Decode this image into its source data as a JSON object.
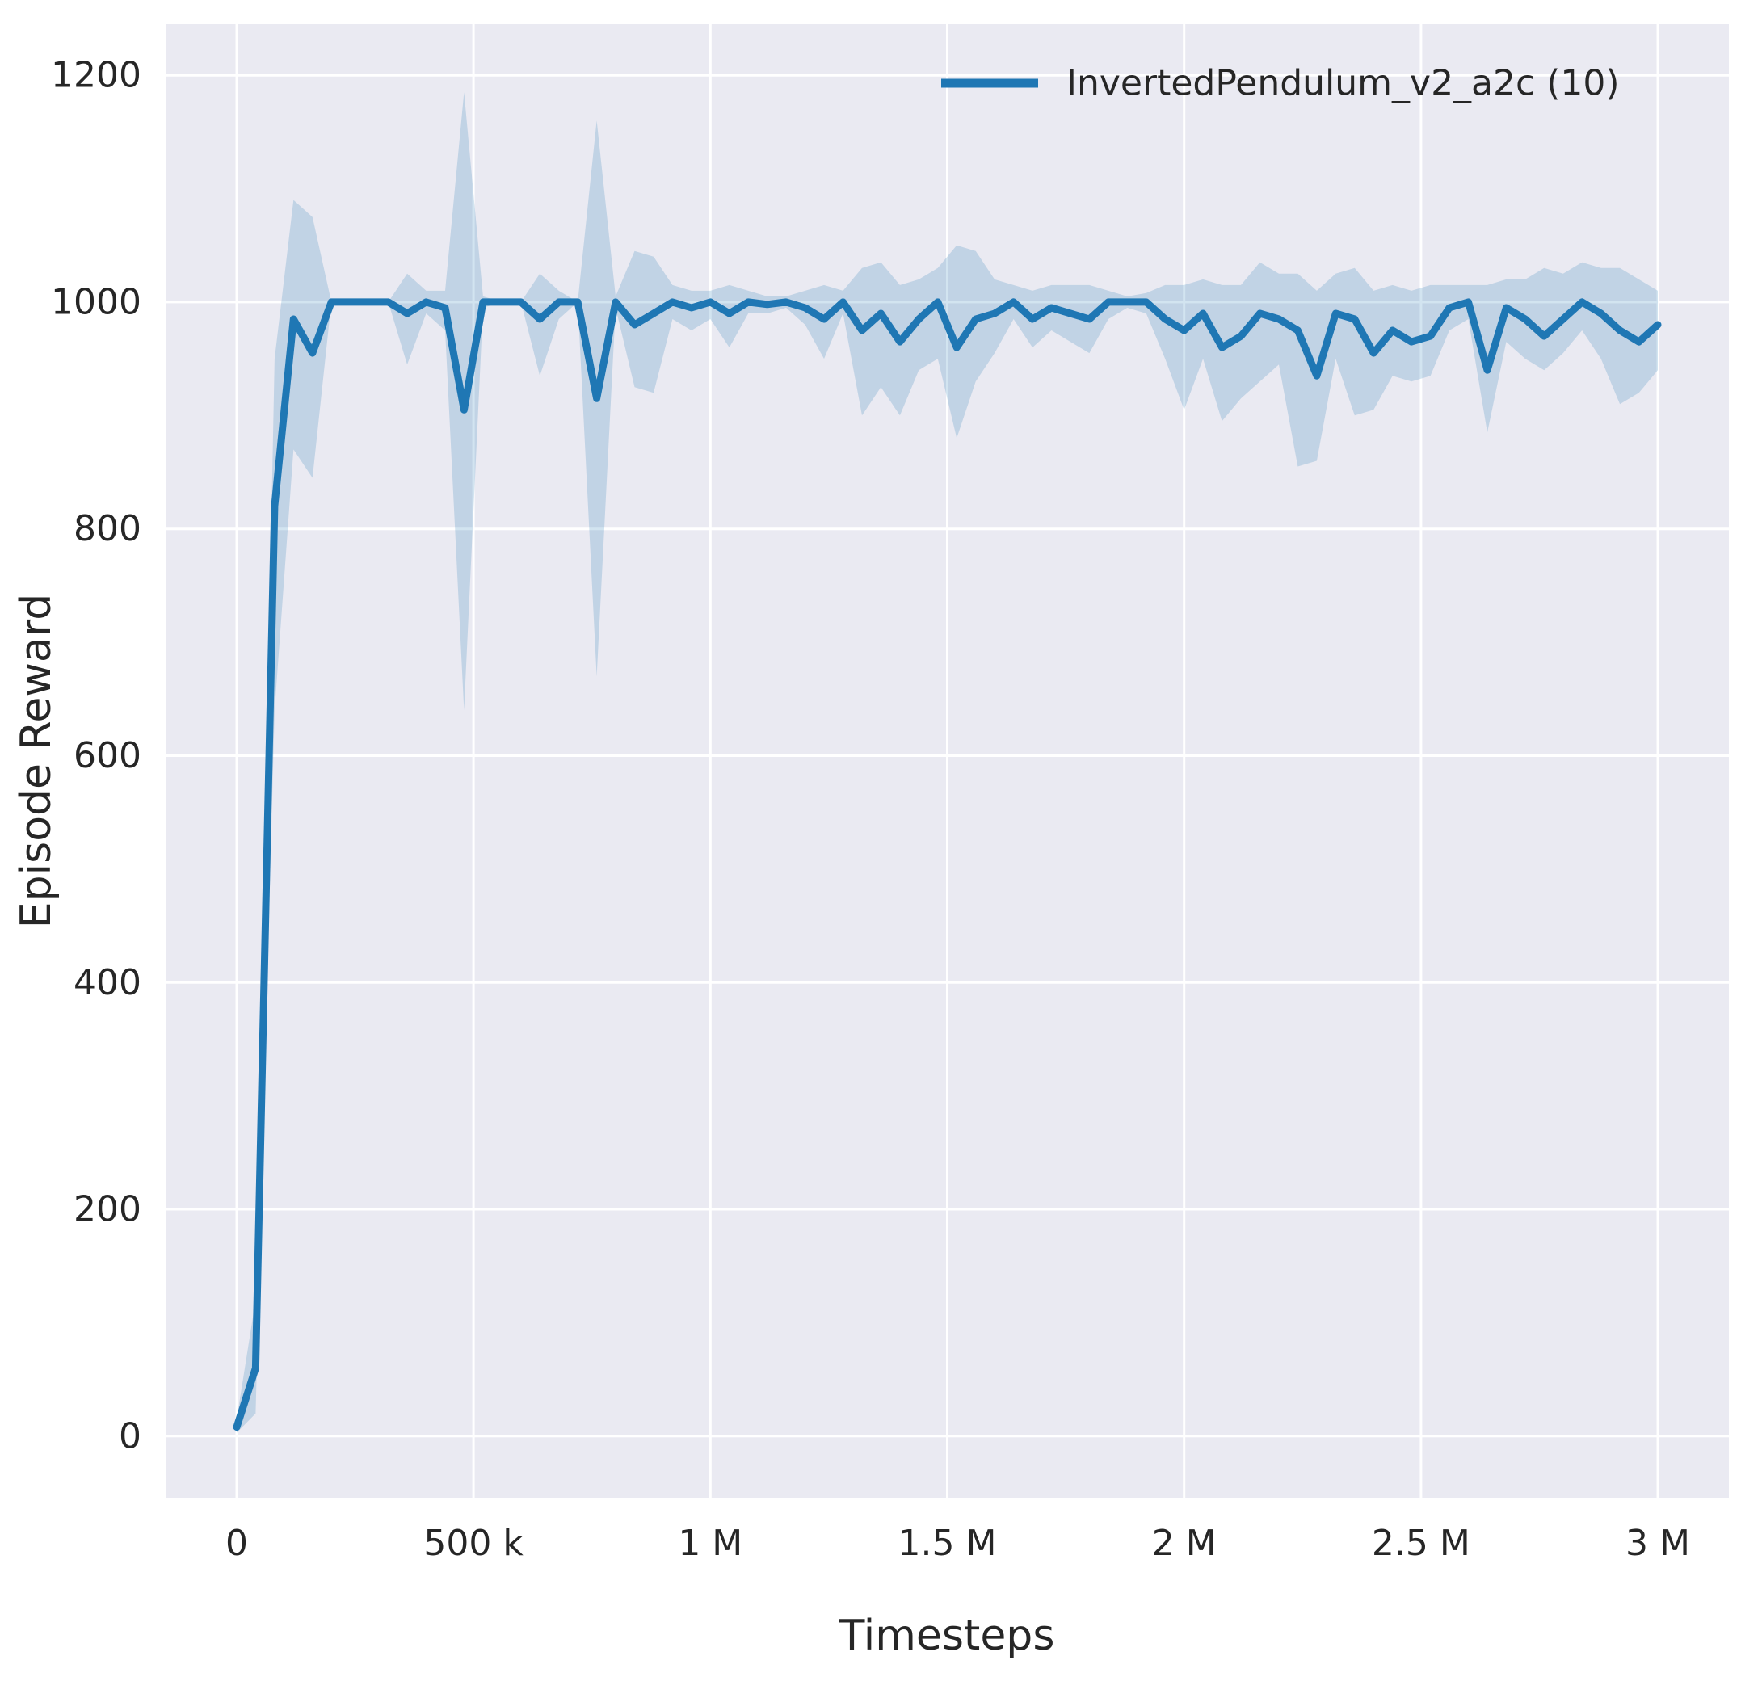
{
  "colors": {
    "figure_background": "#ffffff",
    "plot_background": "#eaeaf2",
    "grid": "#ffffff",
    "text": "#262626",
    "line": "#1f77b4"
  },
  "chart_data": {
    "type": "line",
    "title": "",
    "xlabel": "Timesteps",
    "ylabel": "Episode Reward",
    "grid": true,
    "legend_position": "upper right",
    "xlim": [
      -150000,
      3150000
    ],
    "ylim": [
      -55,
      1245
    ],
    "x_ticks": [
      {
        "value": 0,
        "label": "0"
      },
      {
        "value": 500000,
        "label": "500 k"
      },
      {
        "value": 1000000,
        "label": "1 M"
      },
      {
        "value": 1500000,
        "label": "1.5 M"
      },
      {
        "value": 2000000,
        "label": "2 M"
      },
      {
        "value": 2500000,
        "label": "2.5 M"
      },
      {
        "value": 3000000,
        "label": "3 M"
      }
    ],
    "y_ticks": [
      {
        "value": 0,
        "label": "0"
      },
      {
        "value": 200,
        "label": "200"
      },
      {
        "value": 400,
        "label": "400"
      },
      {
        "value": 600,
        "label": "600"
      },
      {
        "value": 800,
        "label": "800"
      },
      {
        "value": 1000,
        "label": "1000"
      },
      {
        "value": 1200,
        "label": "1200"
      }
    ],
    "series": [
      {
        "name": "InvertedPendulum_v2_a2c (10)",
        "color": "#1f77b4",
        "band_opacity": 0.2,
        "x": [
          0,
          40000,
          80000,
          120000,
          160000,
          200000,
          240000,
          280000,
          320000,
          360000,
          400000,
          440000,
          480000,
          520000,
          560000,
          600000,
          640000,
          680000,
          720000,
          760000,
          800000,
          840000,
          880000,
          920000,
          960000,
          1000000,
          1040000,
          1080000,
          1120000,
          1160000,
          1200000,
          1240000,
          1280000,
          1320000,
          1360000,
          1400000,
          1440000,
          1480000,
          1520000,
          1560000,
          1600000,
          1640000,
          1680000,
          1720000,
          1760000,
          1800000,
          1840000,
          1880000,
          1920000,
          1960000,
          2000000,
          2040000,
          2080000,
          2120000,
          2160000,
          2200000,
          2240000,
          2280000,
          2320000,
          2360000,
          2400000,
          2440000,
          2480000,
          2520000,
          2560000,
          2600000,
          2640000,
          2680000,
          2720000,
          2760000,
          2800000,
          2840000,
          2880000,
          2920000,
          2960000,
          3000000
        ],
        "mean": [
          8,
          60,
          820,
          985,
          955,
          1000,
          1000,
          1000,
          1000,
          990,
          1000,
          995,
          905,
          1000,
          1000,
          1000,
          985,
          1000,
          1000,
          915,
          1000,
          980,
          990,
          1000,
          995,
          1000,
          990,
          1000,
          998,
          1000,
          995,
          985,
          1000,
          975,
          990,
          965,
          985,
          1000,
          960,
          985,
          990,
          1000,
          985,
          995,
          990,
          985,
          1000,
          1000,
          1000,
          985,
          975,
          990,
          960,
          970,
          990,
          985,
          975,
          935,
          990,
          985,
          955,
          975,
          965,
          970,
          995,
          1000,
          940,
          995,
          985,
          970,
          985,
          1000,
          990,
          975,
          965,
          980
        ],
        "band_low": [
          3,
          20,
          640,
          870,
          845,
          1000,
          1000,
          1000,
          1000,
          945,
          990,
          975,
          640,
          995,
          1000,
          1000,
          935,
          985,
          1000,
          670,
          995,
          925,
          920,
          985,
          975,
          985,
          960,
          990,
          990,
          995,
          980,
          950,
          990,
          900,
          925,
          900,
          940,
          950,
          880,
          930,
          955,
          985,
          960,
          975,
          965,
          955,
          985,
          995,
          990,
          950,
          905,
          950,
          895,
          915,
          930,
          945,
          855,
          860,
          950,
          900,
          905,
          935,
          930,
          935,
          975,
          985,
          885,
          965,
          950,
          940,
          955,
          975,
          950,
          910,
          920,
          940
        ],
        "band_high": [
          15,
          120,
          950,
          1090,
          1075,
          1000,
          1000,
          1000,
          1000,
          1025,
          1010,
          1010,
          1185,
          1005,
          1000,
          1000,
          1025,
          1010,
          1000,
          1160,
          1005,
          1045,
          1040,
          1015,
          1010,
          1010,
          1015,
          1010,
          1005,
          1005,
          1010,
          1015,
          1010,
          1030,
          1035,
          1015,
          1020,
          1030,
          1050,
          1045,
          1020,
          1015,
          1010,
          1015,
          1015,
          1015,
          1010,
          1005,
          1008,
          1015,
          1015,
          1020,
          1015,
          1015,
          1035,
          1025,
          1025,
          1010,
          1025,
          1030,
          1010,
          1015,
          1010,
          1015,
          1015,
          1015,
          1015,
          1020,
          1020,
          1030,
          1025,
          1035,
          1030,
          1030,
          1020,
          1010
        ]
      }
    ]
  }
}
